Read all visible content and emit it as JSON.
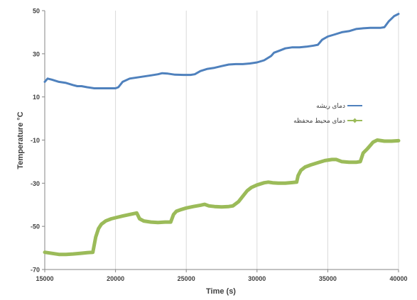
{
  "chart_data": {
    "type": "line",
    "xlabel": "Time  (s)",
    "ylabel": "Temperature °C",
    "xlim": [
      15000,
      40000
    ],
    "ylim": [
      -70,
      50
    ],
    "x_ticks": [
      "15000",
      "20000",
      "25000",
      "30000",
      "35000",
      "40000"
    ],
    "y_ticks": [
      "50",
      "30",
      "10",
      "-10",
      "-30",
      "-50",
      "-70"
    ],
    "x_tick_values": [
      15000,
      20000,
      25000,
      30000,
      35000,
      40000
    ],
    "y_tick_values": [
      50,
      30,
      10,
      -10,
      -30,
      -50,
      -70
    ],
    "grid": "vertical",
    "legend_position": "right",
    "series": [
      {
        "name": "دمای ریشه",
        "color": "#4f81bd",
        "x": [
          15000,
          15200,
          15500,
          16000,
          16500,
          17000,
          17300,
          17600,
          18000,
          18500,
          19000,
          19500,
          20000,
          20200,
          20500,
          21000,
          21500,
          22000,
          22500,
          23000,
          23300,
          23700,
          24200,
          24800,
          25300,
          25600,
          26000,
          26500,
          27000,
          27500,
          28000,
          28500,
          29000,
          29500,
          30000,
          30500,
          31000,
          31200,
          31600,
          32000,
          32500,
          33000,
          33500,
          34000,
          34300,
          34600,
          35000,
          35500,
          36000,
          36500,
          37000,
          37500,
          38000,
          38300,
          38700,
          39000,
          39300,
          39700,
          40000
        ],
        "y": [
          17,
          18.5,
          18,
          17,
          16.5,
          15.5,
          15,
          15,
          14.5,
          14,
          14,
          14,
          14,
          14.5,
          17,
          18.5,
          19,
          19.5,
          20,
          20.5,
          21,
          20.8,
          20.3,
          20.2,
          20.2,
          20.5,
          22,
          23,
          23.5,
          24.3,
          25,
          25.2,
          25.2,
          25.5,
          26,
          27,
          29,
          30.5,
          31.5,
          32.5,
          33,
          33,
          33.3,
          33.8,
          34.2,
          36.5,
          38,
          39,
          40,
          40.5,
          41.5,
          41.8,
          42,
          42,
          42,
          42.3,
          45,
          47.5,
          48.5
        ]
      },
      {
        "name": "دمای محیط محفظه",
        "color": "#9bbb59",
        "x": [
          15000,
          15500,
          16000,
          16500,
          17000,
          17500,
          18000,
          18400,
          18600,
          18800,
          19000,
          19300,
          19700,
          20000,
          20500,
          21000,
          21500,
          21700,
          22000,
          22500,
          23000,
          23500,
          23900,
          24100,
          24300,
          24600,
          25000,
          25500,
          26000,
          26300,
          26600,
          27000,
          27500,
          28000,
          28300,
          28700,
          29000,
          29300,
          29600,
          30000,
          30500,
          30800,
          31100,
          31500,
          32000,
          32500,
          32800,
          32900,
          33100,
          33400,
          33800,
          34300,
          34800,
          35300,
          35600,
          36000,
          36500,
          37000,
          37300,
          37500,
          37800,
          38000,
          38200,
          38500,
          39000,
          39500,
          40000
        ],
        "y": [
          -62,
          -62.5,
          -63,
          -63,
          -62.8,
          -62.5,
          -62.2,
          -62,
          -55,
          -51,
          -49,
          -47.5,
          -46.5,
          -46,
          -45.2,
          -44.5,
          -43.8,
          -46.5,
          -47.5,
          -48,
          -48.2,
          -48,
          -48,
          -44.5,
          -43,
          -42.3,
          -41.5,
          -40.8,
          -40.2,
          -39.8,
          -40.5,
          -40.8,
          -41,
          -40.8,
          -40.5,
          -38.5,
          -36,
          -33.5,
          -32,
          -30.8,
          -29.8,
          -29.5,
          -29.8,
          -30,
          -30,
          -29.7,
          -29.5,
          -26.5,
          -24,
          -22.5,
          -21.5,
          -20.5,
          -19.5,
          -19,
          -19,
          -20,
          -20.3,
          -20.3,
          -20,
          -16,
          -14,
          -12.5,
          -11,
          -10,
          -10.5,
          -10.5,
          -10.3
        ]
      }
    ]
  }
}
